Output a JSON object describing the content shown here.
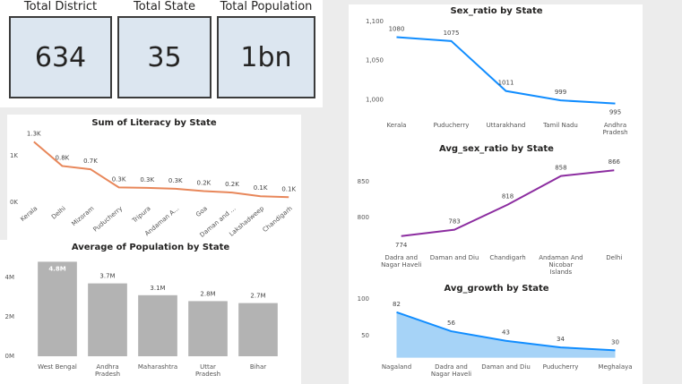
{
  "cards": [
    {
      "label": "Total District",
      "value": "634"
    },
    {
      "label": "Total State",
      "value": "35"
    },
    {
      "label": "Total Population",
      "value": "1bn"
    }
  ],
  "chart_data": [
    {
      "type": "line",
      "title": "Sex_ratio by State",
      "color": "#118DFF",
      "categories": [
        "Kerala",
        "Puducherry",
        "Uttarakhand",
        "Tamil Nadu",
        "Andhra Pradesh"
      ],
      "values": [
        1080,
        1075,
        1011,
        999,
        995
      ],
      "ylim": [
        990,
        1100
      ],
      "yticks": [
        {
          "value": 1000,
          "label": "1,000"
        },
        {
          "value": 1050,
          "label": "1,050"
        },
        {
          "value": 1100,
          "label": "1,100"
        }
      ]
    },
    {
      "type": "line",
      "title": "Sum of Literacy by State",
      "color": "#E8875A",
      "categories": [
        "Kerala",
        "Delhi",
        "Mizoram",
        "Puducherry",
        "Tripura",
        "Andaman A...",
        "Goa",
        "Daman and ...",
        "Lakshadweep",
        "Chandigarh"
      ],
      "values": [
        1300,
        780,
        710,
        320,
        310,
        290,
        240,
        210,
        130,
        110
      ],
      "value_labels": [
        "1.3K",
        "0.8K",
        "0.7K",
        "0.3K",
        "0.3K",
        "0.3K",
        "0.2K",
        "0.2K",
        "0.1K",
        "0.1K"
      ],
      "ylim": [
        0,
        1450
      ],
      "yticks": [
        {
          "value": 0,
          "label": "0K"
        },
        {
          "value": 1000,
          "label": "1K"
        }
      ]
    },
    {
      "type": "bar",
      "title": "Average of Population by State",
      "color": "#B3B3B3",
      "categories": [
        "West Bengal",
        "Andhra Pradesh",
        "Maharashtra",
        "Uttar Pradesh",
        "Bihar"
      ],
      "values": [
        4800000,
        3700000,
        3100000,
        2800000,
        2700000
      ],
      "value_labels": [
        "4.8M",
        "3.7M",
        "3.1M",
        "2.8M",
        "2.7M"
      ],
      "ylim": [
        0,
        5000000
      ],
      "yticks": [
        {
          "value": 0,
          "label": "0M"
        },
        {
          "value": 2000000,
          "label": "2M"
        },
        {
          "value": 4000000,
          "label": "4M"
        }
      ]
    },
    {
      "type": "line",
      "title": "Avg_sex_ratio by State",
      "color": "#8C2DA0",
      "categories": [
        "Dadra and Nagar Haveli",
        "Daman and Diu",
        "Chandigarh",
        "Andaman And Nicobar Islands",
        "Delhi"
      ],
      "values": [
        774,
        783,
        818,
        858,
        866
      ],
      "ylim": [
        770,
        880
      ],
      "yticks": [
        800,
        850
      ]
    },
    {
      "type": "area",
      "title": "Avg_growth by State",
      "color": "#118DFF",
      "fill": "#A6D3F7",
      "categories": [
        "Nagaland",
        "Dadra and Nagar Haveli",
        "Daman and Diu",
        "Puducherry",
        "Meghalaya"
      ],
      "values": [
        82,
        56,
        43,
        34,
        30
      ],
      "ylim": [
        20,
        100
      ],
      "yticks": [
        50,
        100
      ]
    }
  ]
}
